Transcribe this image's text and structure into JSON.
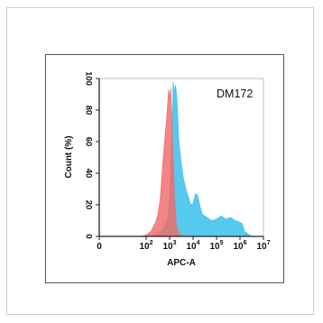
{
  "chart_data": {
    "type": "area",
    "title": "DM172",
    "xlabel": "APC-A",
    "ylabel": "Count (%)",
    "xscale": "log",
    "xlim": [
      1,
      10000000
    ],
    "ylim": [
      0,
      100
    ],
    "xticks": [
      {
        "value": 1,
        "base": "0",
        "exp": ""
      },
      {
        "value": 100,
        "base": "10",
        "exp": "2"
      },
      {
        "value": 1000,
        "base": "10",
        "exp": "3"
      },
      {
        "value": 10000,
        "base": "10",
        "exp": "4"
      },
      {
        "value": 100000,
        "base": "10",
        "exp": "5"
      },
      {
        "value": 1000000,
        "base": "10",
        "exp": "6"
      },
      {
        "value": 10000000,
        "base": "10",
        "exp": "7"
      }
    ],
    "yticks": [
      "0",
      "20",
      "40",
      "60",
      "80",
      "100"
    ],
    "grid": false,
    "series": [
      {
        "color": "#43c3ec",
        "log10_x": [
          0.0,
          2.0,
          2.3,
          2.5,
          2.7,
          2.9,
          3.0,
          3.1,
          3.15,
          3.2,
          3.25,
          3.3,
          3.35,
          3.4,
          3.5,
          3.6,
          3.7,
          3.8,
          3.9,
          4.0,
          4.1,
          4.2,
          4.3,
          4.4,
          4.6,
          4.8,
          5.0,
          5.2,
          5.4,
          5.6,
          5.8,
          6.0,
          6.1,
          6.2,
          6.5,
          7.0
        ],
        "values": [
          0,
          0,
          1,
          2,
          4,
          10,
          25,
          70,
          98,
          92,
          96,
          90,
          76,
          60,
          46,
          36,
          30,
          25,
          20,
          21,
          27,
          26,
          19,
          14,
          12,
          10,
          11,
          13,
          11,
          12,
          10,
          9,
          8,
          3,
          0,
          0
        ]
      },
      {
        "color": "#f26a6a",
        "log10_x": [
          0.0,
          1.8,
          2.0,
          2.2,
          2.4,
          2.5,
          2.6,
          2.7,
          2.8,
          2.9,
          2.95,
          3.0,
          3.05,
          3.1,
          3.15,
          3.2,
          3.25,
          3.3,
          3.4,
          3.5,
          3.7,
          4.0,
          7.0
        ],
        "values": [
          0,
          0,
          1,
          3,
          9,
          14,
          24,
          45,
          63,
          80,
          93,
          88,
          94,
          72,
          52,
          30,
          15,
          6,
          2,
          0.5,
          0,
          0,
          0
        ]
      }
    ]
  }
}
